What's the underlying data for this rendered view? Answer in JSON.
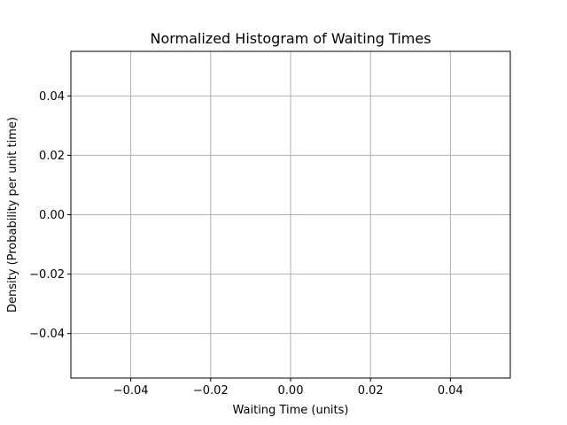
{
  "chart_data": {
    "type": "bar",
    "title": "Normalized Histogram of Waiting Times",
    "xlabel": "Waiting Time (units)",
    "ylabel": "Density (Probability per unit time)",
    "categories": [],
    "values": [],
    "xlim": [
      -0.055,
      0.055
    ],
    "ylim": [
      -0.055,
      0.055
    ],
    "xticks": [
      -0.04,
      -0.02,
      0.0,
      0.02,
      0.04
    ],
    "yticks": [
      -0.04,
      -0.02,
      0.0,
      0.02,
      0.04
    ],
    "xtick_labels": [
      "−0.04",
      "−0.02",
      "0.00",
      "0.02",
      "0.04"
    ],
    "ytick_labels": [
      "−0.04",
      "−0.02",
      "0.00",
      "0.02",
      "0.04"
    ],
    "grid": true,
    "colors": {
      "grid": "#b0b0b0",
      "axes": "#000000",
      "background": "#ffffff"
    }
  }
}
